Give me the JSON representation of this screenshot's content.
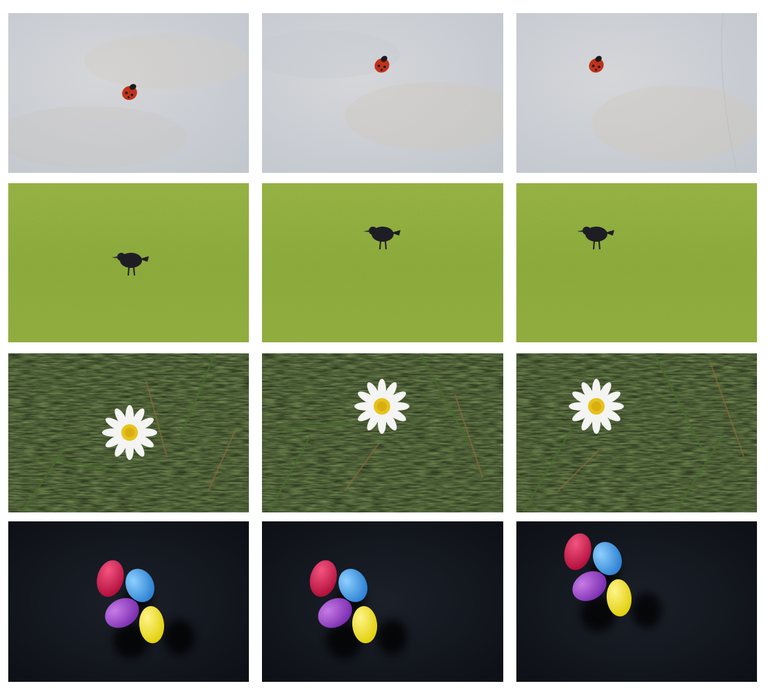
{
  "grid": {
    "rows": [
      {
        "scene": "ladybug-on-stone",
        "background": "#cfd3d8",
        "subject_color": "#c0321a"
      },
      {
        "scene": "blackbird-on-grass",
        "background": "#8fb03c",
        "subject_color": "#1f1d24"
      },
      {
        "scene": "daisy-in-grass",
        "background": "#1d2616",
        "subject_color": "#f4f4f2"
      },
      {
        "scene": "jelly-beans-on-dark",
        "background": "#12161e",
        "subject_color": "#d41d55"
      }
    ],
    "columns": 3
  }
}
